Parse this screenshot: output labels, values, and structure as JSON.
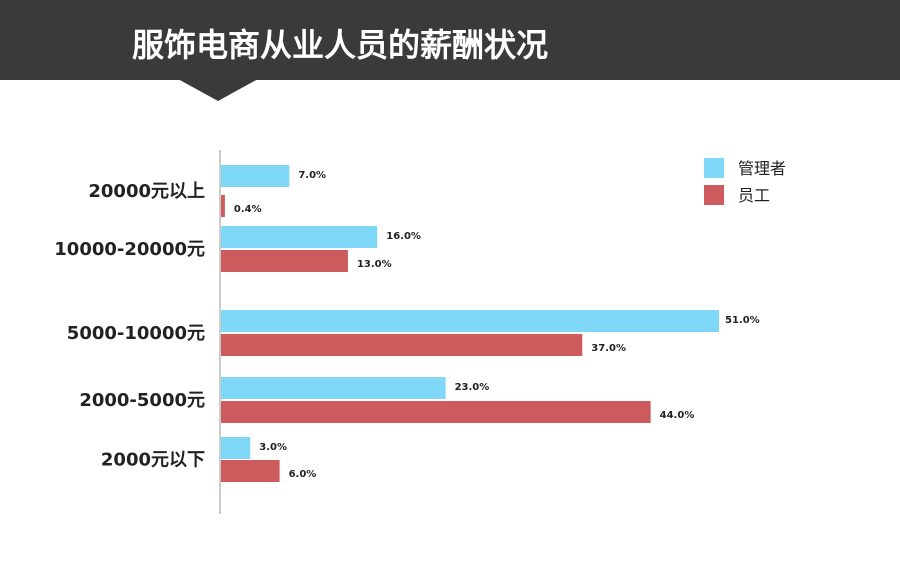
{
  "header": {
    "title": "服饰电商从业人员的薪酬状况"
  },
  "chart_data": {
    "type": "bar",
    "orientation": "horizontal",
    "title": "服饰电商从业人员的薪酬状况",
    "categories": [
      "20000元以上",
      "10000-20000元",
      "5000-10000元",
      "2000-5000元",
      "2000元以下"
    ],
    "series": [
      {
        "name": "管理者",
        "color": "#7fd8f8",
        "values": [
          7.0,
          16.0,
          51.0,
          23.0,
          3.0
        ],
        "labels": [
          "7.0%",
          "16.0%",
          "51.0%",
          "23.0%",
          "3.0%"
        ]
      },
      {
        "name": "员工",
        "color": "#cd5a5c",
        "values": [
          0.4,
          13.0,
          37.0,
          44.0,
          6.0
        ],
        "labels": [
          "0.4%",
          "13.0%",
          "37.0%",
          "44.0%",
          "6.0%"
        ]
      }
    ],
    "value_unit": "%",
    "xlim": [
      0,
      51
    ],
    "legend_position": "top-right",
    "grid": false
  }
}
